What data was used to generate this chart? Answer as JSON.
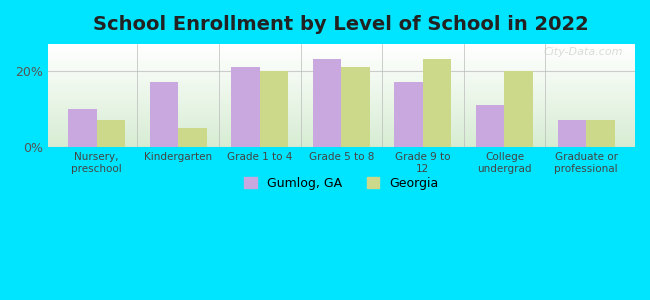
{
  "title": "School Enrollment by Level of School in 2022",
  "categories": [
    "Nursery,\npreschool",
    "Kindergarten",
    "Grade 1 to 4",
    "Grade 5 to 8",
    "Grade 9 to\n12",
    "College\nundergrad",
    "Graduate or\nprofessional"
  ],
  "gumlog_values": [
    10,
    17,
    21,
    23,
    17,
    11,
    7
  ],
  "georgia_values": [
    7,
    5,
    20,
    21,
    23,
    20,
    7
  ],
  "gumlog_color": "#c9a8e0",
  "georgia_color": "#ccd98a",
  "background_outer": "#00e5ff",
  "background_chart_top": "#ffffff",
  "background_chart_bottom": "#d6ecd2",
  "ylim": [
    0,
    27
  ],
  "yticks": [
    0,
    20
  ],
  "ytick_labels": [
    "0%",
    "20%"
  ],
  "bar_width": 0.35,
  "title_fontsize": 14,
  "legend_labels": [
    "Gumlog, GA",
    "Georgia"
  ],
  "watermark": "City-Data.com"
}
